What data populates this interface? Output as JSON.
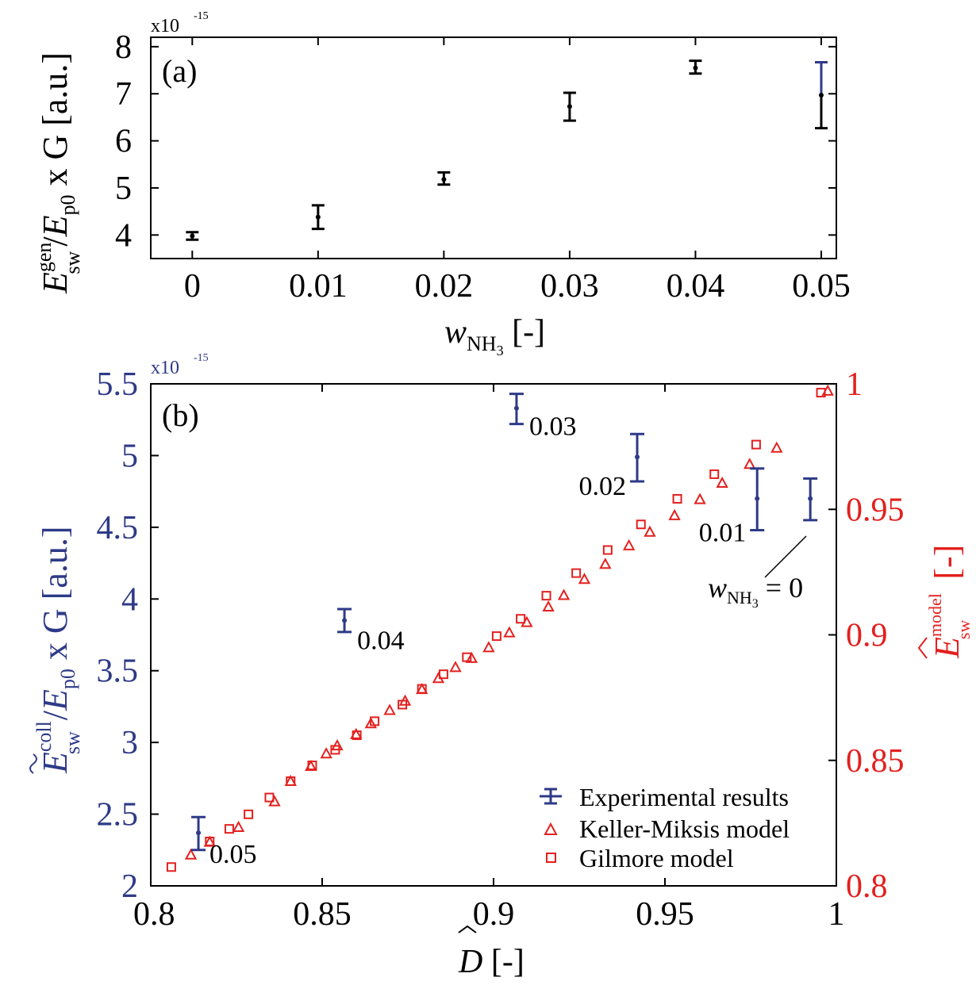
{
  "colors": {
    "axis": "#000000",
    "blue": "#2e3a87",
    "red": "#e3201e"
  },
  "chart_data": [
    {
      "id": "a",
      "type": "scatter",
      "panel_label": "(a)",
      "exponent_label": "x10",
      "exponent_power": "-15",
      "xlabel": {
        "main": "w",
        "sub": "NH",
        "sub2": "3",
        "suffix": " [-]"
      },
      "ylabel": {
        "E": "E",
        "sup": "gen",
        "sub": "sw",
        "slash": "/",
        "E2": "E",
        "sub2": "p0",
        "rest": " x G [a.u.]"
      },
      "xlim": [
        -0.0033,
        0.0512
      ],
      "ylim": [
        3.5,
        8.2
      ],
      "xticks": [
        0,
        0.01,
        0.02,
        0.03,
        0.04,
        0.05
      ],
      "xtick_labels": [
        "0",
        "0.01",
        "0.02",
        "0.03",
        "0.04",
        "0.05"
      ],
      "yticks": [
        4,
        5,
        6,
        7,
        8
      ],
      "ytick_labels": [
        "4",
        "5",
        "6",
        "7",
        "8"
      ],
      "grid": false,
      "series": [
        {
          "points": [
            {
              "x": 0,
              "y": 3.98,
              "lo": 3.9,
              "hi": 4.06
            },
            {
              "x": 0.01,
              "y": 4.38,
              "lo": 4.13,
              "hi": 4.63
            },
            {
              "x": 0.02,
              "y": 5.18,
              "lo": 5.07,
              "hi": 5.33
            },
            {
              "x": 0.03,
              "y": 6.73,
              "lo": 6.43,
              "hi": 7.02
            },
            {
              "x": 0.04,
              "y": 7.55,
              "lo": 7.43,
              "hi": 7.7
            },
            {
              "x": 0.05,
              "y": 6.97,
              "lo": 6.27,
              "hi": 7.67
            }
          ]
        }
      ]
    },
    {
      "id": "b",
      "type": "scatter",
      "panel_label": "(b)",
      "exponent_label": "x10",
      "exponent_power": "-15",
      "xlabel": {
        "main": "D",
        "suffix": " [-]"
      },
      "ylabel": {
        "E": "E",
        "sup": "coll",
        "sub": "sw",
        "slash": "/",
        "E2": "E",
        "sub2": "p0",
        "rest": " x G [a.u.]"
      },
      "y2label": {
        "E": "E",
        "sup": "model",
        "sub": "sw",
        "suffix": " [-]"
      },
      "xlim": [
        0.8,
        1.0
      ],
      "ylim": [
        2.0,
        5.5
      ],
      "y2lim": [
        0.8,
        1.0
      ],
      "xticks": [
        0.8,
        0.85,
        0.9,
        0.95,
        1.0
      ],
      "xtick_labels": [
        "0.8",
        "0.85",
        "0.9",
        "0.95",
        "1"
      ],
      "yticks": [
        2,
        2.5,
        3,
        3.5,
        4,
        4.5,
        5,
        5.5
      ],
      "ytick_labels": [
        "2",
        "2.5",
        "3",
        "3.5",
        "4",
        "4.5",
        "5",
        "5.5"
      ],
      "y2ticks": [
        0.8,
        0.85,
        0.9,
        0.95,
        1.0
      ],
      "y2tick_labels": [
        "0.8",
        "0.85",
        "0.9",
        "0.95",
        "1"
      ],
      "grid": false,
      "legend_position": "bottom-right",
      "annotation_arrow": {
        "text_main": "w",
        "text_sub": "NH",
        "text_sub2": "3",
        "text_suffix": " = 0"
      },
      "series": [
        {
          "name": "Experimental results",
          "marker": "errorbar",
          "axis": "left",
          "points": [
            {
              "x": 0.8139,
              "y": 2.37,
              "lo": 2.25,
              "hi": 2.48,
              "label": "0.05"
            },
            {
              "x": 0.8565,
              "y": 3.85,
              "lo": 3.77,
              "hi": 3.93,
              "label": "0.04"
            },
            {
              "x": 0.9067,
              "y": 5.33,
              "lo": 5.22,
              "hi": 5.43,
              "label": "0.03"
            },
            {
              "x": 0.9419,
              "y": 4.99,
              "lo": 4.82,
              "hi": 5.15,
              "label": "0.02"
            },
            {
              "x": 0.9769,
              "y": 4.7,
              "lo": 4.48,
              "hi": 4.91,
              "label": "0.01"
            },
            {
              "x": 0.9924,
              "y": 4.7,
              "lo": 4.55,
              "hi": 4.84,
              "label": "0"
            }
          ]
        },
        {
          "name": "Keller-Miksis model",
          "marker": "triangle",
          "axis": "right",
          "x": [
            0.8117,
            0.8172,
            0.8256,
            0.8361,
            0.8408,
            0.8467,
            0.8512,
            0.8544,
            0.8599,
            0.8642,
            0.8697,
            0.8742,
            0.8791,
            0.8839,
            0.8889,
            0.8936,
            0.8986,
            0.9046,
            0.9097,
            0.916,
            0.9205,
            0.9265,
            0.9326,
            0.9395,
            0.9456,
            0.9528,
            0.9602,
            0.9667,
            0.9747,
            0.9826,
            0.9975
          ],
          "y": [
            0.8124,
            0.8175,
            0.8234,
            0.8336,
            0.8417,
            0.8477,
            0.8527,
            0.8559,
            0.8604,
            0.8647,
            0.87,
            0.8737,
            0.8783,
            0.8827,
            0.8871,
            0.8907,
            0.895,
            0.9009,
            0.905,
            0.9112,
            0.9158,
            0.9222,
            0.9282,
            0.9356,
            0.941,
            0.9476,
            0.954,
            0.9605,
            0.968,
            0.9745,
            0.9972
          ]
        },
        {
          "name": "Gilmore model",
          "marker": "square",
          "axis": "right",
          "x": [
            0.806,
            0.8172,
            0.8229,
            0.8285,
            0.8346,
            0.8408,
            0.8471,
            0.8538,
            0.8601,
            0.8653,
            0.8734,
            0.8791,
            0.8854,
            0.8922,
            0.9009,
            0.9079,
            0.9154,
            0.9241,
            0.9333,
            0.943,
            0.9536,
            0.9644,
            0.9766,
            0.9955
          ],
          "y": [
            0.8075,
            0.8177,
            0.8227,
            0.8285,
            0.8352,
            0.8417,
            0.848,
            0.8542,
            0.86,
            0.8656,
            0.8722,
            0.8785,
            0.8843,
            0.8911,
            0.8995,
            0.9064,
            0.9156,
            0.9246,
            0.9338,
            0.944,
            0.9542,
            0.964,
            0.9758,
            0.9965
          ]
        }
      ]
    }
  ]
}
